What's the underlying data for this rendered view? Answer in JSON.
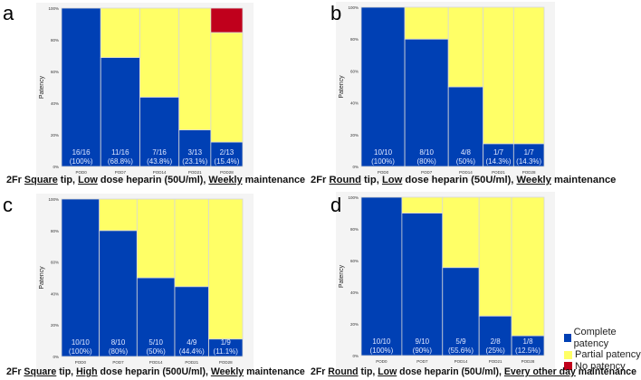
{
  "colors": {
    "complete": "#0040B4",
    "partial": "#FFFF66",
    "none": "#C0001C",
    "plot_bg": "#F4F4F4",
    "divider": "#D8D8D8"
  },
  "y_ticks": [
    "0%",
    "20%",
    "40%",
    "60%",
    "80%",
    "100%"
  ],
  "ylabel": "Patency",
  "legend": [
    {
      "label": "Complete patency",
      "key": "complete"
    },
    {
      "label": "Partial patency",
      "key": "partial"
    },
    {
      "label": "No patency",
      "key": "none"
    }
  ],
  "chart_data": [
    {
      "type": "bar",
      "stacked": true,
      "mosaic": true,
      "panel": "a",
      "caption": [
        [
          "2Fr ",
          0
        ],
        [
          "Square",
          1
        ],
        [
          " tip, ",
          0
        ],
        [
          "Low",
          1
        ],
        [
          " dose heparin (50U/ml), ",
          0
        ],
        [
          "Weekly",
          1
        ],
        [
          " maintenance",
          0
        ]
      ],
      "categories": [
        "POD0",
        "POD7",
        "POD14",
        "POD21",
        "POD28"
      ],
      "n": [
        16,
        16,
        16,
        13,
        13
      ],
      "complete": [
        100,
        68.8,
        43.8,
        23.1,
        15.4
      ],
      "partial": [
        0,
        31.2,
        56.2,
        76.9,
        69.2
      ],
      "none": [
        0,
        0,
        0,
        0,
        15.4
      ],
      "labels": [
        [
          "16/16",
          "(100%)"
        ],
        [
          "11/16",
          "(68.8%)"
        ],
        [
          "7/16",
          "(43.8%)"
        ],
        [
          "3/13",
          "(23.1%)"
        ],
        [
          "2/13",
          "(15.4%)"
        ]
      ],
      "ylim": [
        0,
        100
      ]
    },
    {
      "type": "bar",
      "stacked": true,
      "mosaic": true,
      "panel": "b",
      "caption": [
        [
          "2Fr ",
          0
        ],
        [
          "Round",
          1
        ],
        [
          " tip, ",
          0
        ],
        [
          "Low",
          1
        ],
        [
          " dose heparin (50U/ml), ",
          0
        ],
        [
          "Weekly",
          1
        ],
        [
          " maintenance",
          0
        ]
      ],
      "categories": [
        "POD0",
        "POD7",
        "POD14",
        "POD21",
        "POD28"
      ],
      "n": [
        10,
        10,
        8,
        7,
        7
      ],
      "complete": [
        100,
        80,
        50,
        14.3,
        14.3
      ],
      "partial": [
        0,
        20,
        50,
        85.7,
        85.7
      ],
      "none": [
        0,
        0,
        0,
        0,
        0
      ],
      "labels": [
        [
          "10/10",
          "(100%)"
        ],
        [
          "8/10",
          "(80%)"
        ],
        [
          "4/8",
          "(50%)"
        ],
        [
          "1/7",
          "(14.3%)"
        ],
        [
          "1/7",
          "(14.3%)"
        ]
      ],
      "ylim": [
        0,
        100
      ]
    },
    {
      "type": "bar",
      "stacked": true,
      "mosaic": true,
      "panel": "c",
      "caption": [
        [
          "2Fr ",
          0
        ],
        [
          "Square",
          1
        ],
        [
          " tip, ",
          0
        ],
        [
          "High",
          1
        ],
        [
          " dose heparin (500U/ml), ",
          0
        ],
        [
          "Weekly",
          1
        ],
        [
          " maintenance",
          0
        ]
      ],
      "categories": [
        "POD0",
        "POD7",
        "POD14",
        "POD21",
        "POD28"
      ],
      "n": [
        10,
        10,
        10,
        9,
        9
      ],
      "complete": [
        100,
        80,
        50,
        44.4,
        11.1
      ],
      "partial": [
        0,
        20,
        50,
        55.6,
        88.9
      ],
      "none": [
        0,
        0,
        0,
        0,
        0
      ],
      "labels": [
        [
          "10/10",
          "(100%)"
        ],
        [
          "8/10",
          "(80%)"
        ],
        [
          "5/10",
          "(50%)"
        ],
        [
          "4/9",
          "(44.4%)"
        ],
        [
          "1/9",
          "(11.1%)"
        ]
      ],
      "ylim": [
        0,
        100
      ]
    },
    {
      "type": "bar",
      "stacked": true,
      "mosaic": true,
      "panel": "d",
      "caption": [
        [
          "2Fr ",
          0
        ],
        [
          "Round",
          1
        ],
        [
          " tip, ",
          0
        ],
        [
          "Low",
          1
        ],
        [
          " dose heparin (50U/ml), ",
          0
        ],
        [
          "Every other day",
          1
        ],
        [
          " maintenance",
          0
        ]
      ],
      "categories": [
        "POD0",
        "POD7",
        "POD14",
        "POD21",
        "POD28"
      ],
      "n": [
        10,
        10,
        9,
        8,
        8
      ],
      "complete": [
        100,
        90,
        55.6,
        25,
        12.5
      ],
      "partial": [
        0,
        10,
        44.4,
        75,
        87.5
      ],
      "none": [
        0,
        0,
        0,
        0,
        0
      ],
      "labels": [
        [
          "10/10",
          "(100%)"
        ],
        [
          "9/10",
          "(90%)"
        ],
        [
          "5/9",
          "(55.6%)"
        ],
        [
          "2/8",
          "(25%)"
        ],
        [
          "1/8",
          "(12.5%)"
        ]
      ],
      "ylim": [
        0,
        100
      ]
    }
  ]
}
